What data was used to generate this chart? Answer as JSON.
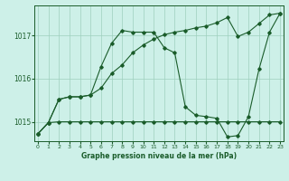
{
  "title": "Graphe pression niveau de la mer (hPa)",
  "background_color": "#cdf0e8",
  "grid_color": "#9ecfbe",
  "line_color": "#1a5c2a",
  "x_ticks": [
    0,
    1,
    2,
    3,
    4,
    5,
    6,
    7,
    8,
    9,
    10,
    11,
    12,
    13,
    14,
    15,
    16,
    17,
    18,
    19,
    20,
    21,
    22,
    23
  ],
  "y_ticks": [
    1015,
    1016,
    1017
  ],
  "ylim": [
    1014.55,
    1017.7
  ],
  "xlim": [
    -0.3,
    23.3
  ],
  "series1": {
    "x": [
      0,
      1,
      2,
      3,
      4,
      5,
      6,
      7,
      8,
      9,
      10,
      11,
      12,
      13,
      14,
      15,
      16,
      17,
      18,
      19,
      20,
      21,
      22,
      23
    ],
    "y": [
      1014.72,
      1014.98,
      1015.52,
      1015.58,
      1015.58,
      1015.62,
      1015.78,
      1016.12,
      1016.32,
      1016.6,
      1016.78,
      1016.92,
      1017.02,
      1017.08,
      1017.12,
      1017.18,
      1017.22,
      1017.3,
      1017.42,
      1016.98,
      1017.08,
      1017.28,
      1017.48,
      1017.52
    ]
  },
  "series2": {
    "x": [
      0,
      1,
      2,
      3,
      4,
      5,
      6,
      7,
      8,
      9,
      10,
      11,
      12,
      13,
      14,
      15,
      16,
      17,
      18,
      19,
      20,
      21,
      22,
      23
    ],
    "y": [
      1014.72,
      1014.98,
      1015.0,
      1015.0,
      1015.0,
      1015.0,
      1015.0,
      1015.0,
      1015.0,
      1015.0,
      1015.0,
      1015.0,
      1015.0,
      1015.0,
      1015.0,
      1015.0,
      1015.0,
      1015.0,
      1015.0,
      1015.0,
      1015.0,
      1015.0,
      1015.0,
      1015.0
    ]
  },
  "series3": {
    "x": [
      0,
      1,
      2,
      3,
      4,
      5,
      6,
      7,
      8,
      9,
      10,
      11,
      12,
      13,
      14,
      15,
      16,
      17,
      18,
      19,
      20,
      21,
      22,
      23
    ],
    "y": [
      1014.72,
      1014.98,
      1015.52,
      1015.58,
      1015.58,
      1015.62,
      1016.28,
      1016.82,
      1017.12,
      1017.08,
      1017.08,
      1017.08,
      1016.72,
      1016.6,
      1015.35,
      1015.15,
      1015.12,
      1015.08,
      1014.65,
      1014.68,
      1015.12,
      1016.22,
      1017.08,
      1017.52
    ]
  }
}
